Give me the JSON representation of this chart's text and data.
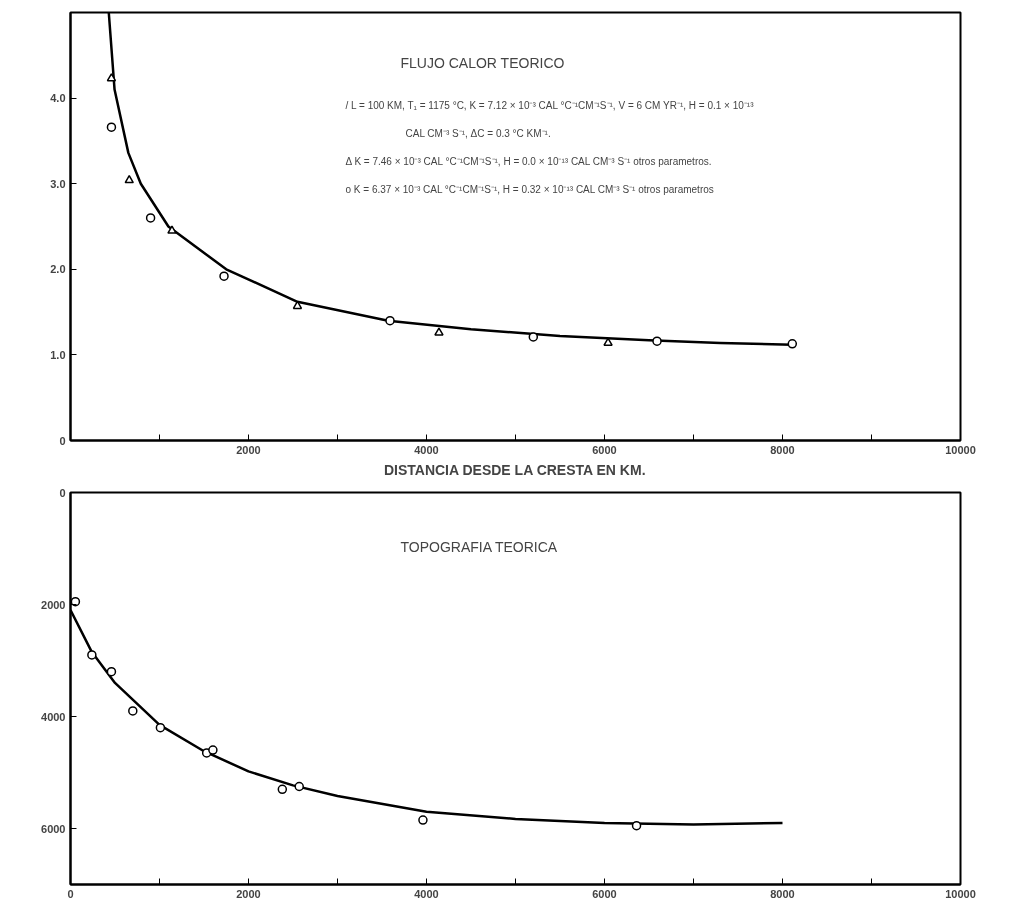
{
  "chart_data": [
    {
      "type": "line",
      "title": "FLUJO CALOR TEORICO",
      "xlabel": "DISTANCIA DESDE LA CRESTA EN KM.",
      "xlim": [
        0,
        10000
      ],
      "ylim": [
        0,
        5
      ],
      "xticks": [
        {
          "value": 1000,
          "label": null
        },
        2000,
        {
          "value": 3000,
          "label": null
        },
        4000,
        {
          "value": 5000,
          "label": null
        },
        6000,
        {
          "value": 7000,
          "label": null
        },
        8000,
        {
          "value": 9000,
          "label": null
        },
        10000
      ],
      "yticks": [
        0,
        {
          "value": 1,
          "label": "1.0"
        },
        {
          "value": 2,
          "label": "2.0"
        },
        {
          "value": 3,
          "label": "3.0"
        },
        {
          "value": 4,
          "label": "4.0"
        }
      ],
      "annotations": [
        "/  L = 100 KM,   T₁ = 1175 °C,   K = 7.12 × 10⁻³ CAL °C⁻¹CM⁻¹S⁻¹,  V = 6 CM YR⁻¹,  H = 0.1 × 10⁻¹³",
        "CAL CM⁻³ S⁻¹,  ΔC = 0.3 °C KM⁻¹.",
        "Δ  K = 7.46 × 10⁻³ CAL °C⁻¹CM⁻¹S⁻¹,  H = 0.0 × 10⁻¹³ CAL CM⁻³ S⁻¹  otros parametros.",
        "o  K = 6.37 × 10⁻³ CAL °C⁻¹CM⁻¹S⁻¹,  H = 0.32 × 10⁻¹³ CAL CM⁻³ S⁻¹  otros parametros"
      ],
      "series": [
        {
          "color": "#000000",
          "x": [
            430,
            495,
            650,
            790,
            1100,
            1750,
            2550,
            3570,
            4500,
            5500,
            6500,
            7300,
            8110
          ],
          "values": [
            5.0,
            4.1,
            3.36,
            3.0,
            2.5,
            2.0,
            1.62,
            1.4,
            1.3,
            1.22,
            1.17,
            1.14,
            1.12
          ]
        },
        {
          "type": "scatter",
          "marker": "triangle",
          "color": "#000000",
          "x": [
            460,
            660,
            1140,
            2550,
            4140,
            6040
          ],
          "values": [
            4.23,
            3.04,
            2.45,
            1.57,
            1.26,
            1.14
          ]
        },
        {
          "type": "scatter",
          "marker": "circle",
          "color": "#000000",
          "x": [
            460,
            900,
            1725,
            3590,
            5200,
            6590,
            8110
          ],
          "values": [
            3.66,
            2.6,
            1.92,
            1.4,
            1.21,
            1.16,
            1.13
          ]
        }
      ]
    },
    {
      "type": "line",
      "title": "TOPOGRAFIA TEORICA",
      "xlim": [
        0,
        10000
      ],
      "ylim": [
        7000,
        0
      ],
      "xticks": [
        0,
        {
          "value": 1000,
          "label": null
        },
        2000,
        {
          "value": 3000,
          "label": null
        },
        4000,
        {
          "value": 5000,
          "label": null
        },
        6000,
        {
          "value": 7000,
          "label": null
        },
        8000,
        {
          "value": 9000,
          "label": null
        },
        10000
      ],
      "yticks": [
        0,
        2000,
        4000,
        6000
      ],
      "series": [
        {
          "color": "#000000",
          "x": [
            0,
            240,
            500,
            1000,
            1500,
            2000,
            2500,
            3000,
            4000,
            5000,
            6000,
            7000,
            8000
          ],
          "values": [
            2100,
            2850,
            3400,
            4150,
            4620,
            4980,
            5230,
            5420,
            5700,
            5830,
            5900,
            5930,
            5900
          ]
        },
        {
          "type": "scatter",
          "marker": "circle",
          "color": "#000000",
          "x": [
            55,
            240,
            460,
            700,
            1010,
            1530,
            1600,
            2380,
            2570,
            3960,
            6360
          ],
          "values": [
            1950,
            2900,
            3200,
            3900,
            4200,
            4650,
            4600,
            5300,
            5250,
            5850,
            5950
          ]
        }
      ]
    }
  ]
}
